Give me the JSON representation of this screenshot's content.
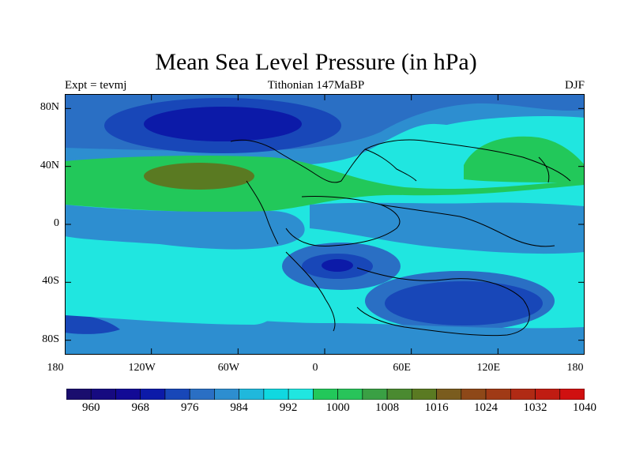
{
  "title": "Mean Sea Level Pressure (in hPa)",
  "left_string": "Expt = tevmj",
  "center_string": "Tithonian 147MaBP",
  "right_string": "DJF",
  "map": {
    "lon_range": [
      -180,
      180
    ],
    "lat_range": [
      -90,
      90
    ],
    "lat_ticks": [
      {
        "value": 80,
        "label": "80N"
      },
      {
        "value": 40,
        "label": "40N"
      },
      {
        "value": 0,
        "label": "0"
      },
      {
        "value": -40,
        "label": "40S"
      },
      {
        "value": -80,
        "label": "80S"
      }
    ],
    "lon_ticks": [
      {
        "value": -180,
        "label": "180"
      },
      {
        "value": -120,
        "label": "120W"
      },
      {
        "value": -60,
        "label": "60W"
      },
      {
        "value": 0,
        "label": "0"
      },
      {
        "value": 60,
        "label": "60E"
      },
      {
        "value": 120,
        "label": "120E"
      },
      {
        "value": 180,
        "label": "180"
      }
    ]
  },
  "colorbar": {
    "colors": [
      "#1a0d6e",
      "#160a80",
      "#120a95",
      "#0c1aa8",
      "#1847b8",
      "#2a6fc4",
      "#2d8ed0",
      "#20b8dc",
      "#10d8e0",
      "#20e6e0",
      "#22c85a",
      "#28c45a",
      "#3aa044",
      "#4a8a30",
      "#5a7a22",
      "#7a5c1e",
      "#8e4818",
      "#a03a16",
      "#b02a14",
      "#c01c12",
      "#d01010"
    ],
    "labels": [
      {
        "label": "960",
        "index": 1
      },
      {
        "label": "968",
        "index": 3
      },
      {
        "label": "976",
        "index": 5
      },
      {
        "label": "984",
        "index": 7
      },
      {
        "label": "992",
        "index": 9
      },
      {
        "label": "1000",
        "index": 11
      },
      {
        "label": "1008",
        "index": 13
      },
      {
        "label": "1016",
        "index": 15
      },
      {
        "label": "1024",
        "index": 17
      },
      {
        "label": "1032",
        "index": 19
      },
      {
        "label": "1040",
        "index": 21
      }
    ]
  }
}
